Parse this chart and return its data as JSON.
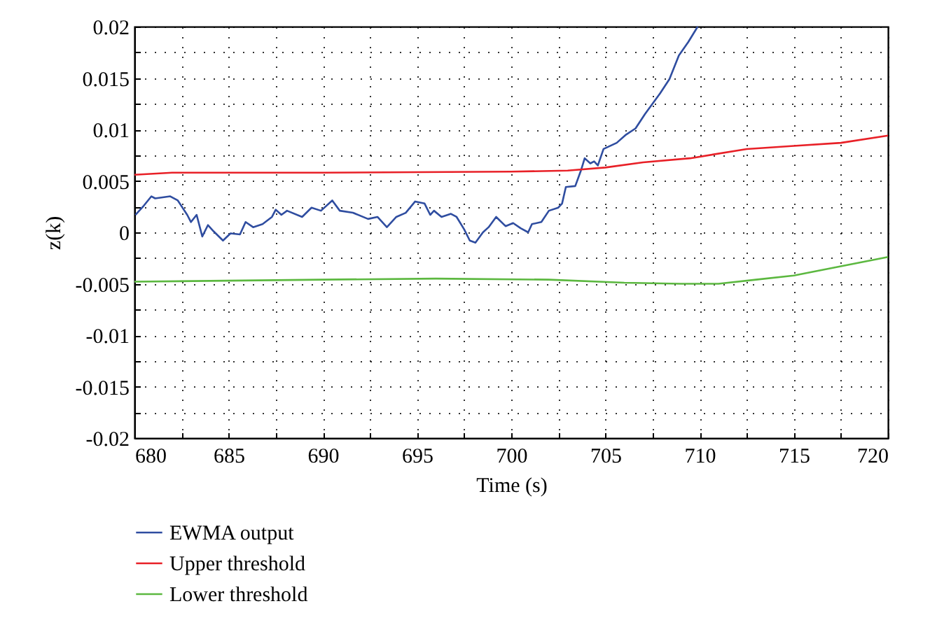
{
  "chart_data": {
    "type": "line",
    "xlabel": "Time (s)",
    "ylabel": "z(k)",
    "xlim": [
      680,
      720
    ],
    "ylim": [
      -0.02,
      0.02
    ],
    "xticks": [
      680,
      {
        "value": 682.5,
        "label": null
      },
      685,
      {
        "value": 687.5,
        "label": null
      },
      690,
      {
        "value": 692.5,
        "label": null
      },
      695,
      {
        "value": 697.5,
        "label": null
      },
      700,
      {
        "value": 702.5,
        "label": null
      },
      705,
      {
        "value": 707.5,
        "label": null
      },
      710,
      {
        "value": 712.5,
        "label": null
      },
      715,
      {
        "value": 717.5,
        "label": null
      },
      720
    ],
    "yticks": [
      -0.02,
      {
        "value": -0.0175,
        "label": null
      },
      -0.015,
      {
        "value": -0.0125,
        "label": null
      },
      -0.01,
      {
        "value": -0.0075,
        "label": null
      },
      -0.005,
      {
        "value": -0.0025,
        "label": null
      },
      0,
      {
        "value": 0.0025,
        "label": null
      },
      0.005,
      {
        "value": 0.0075,
        "label": null
      },
      0.01,
      {
        "value": 0.0125,
        "label": null
      },
      0.015,
      {
        "value": 0.0175,
        "label": null
      },
      0.02
    ],
    "grid": true,
    "line_style": "solid",
    "legend": "bottom",
    "series": [
      {
        "name": "EWMA output",
        "color": "#2f4da0",
        "x": [
          680.05,
          680.5,
          680.9,
          681.1,
          681.9,
          682.3,
          682.8,
          683.0,
          683.3,
          683.6,
          683.9,
          684.2,
          684.7,
          685.1,
          685.6,
          685.9,
          686.3,
          686.8,
          687.3,
          687.5,
          687.8,
          688.1,
          688.9,
          689.4,
          689.9,
          690.5,
          690.9,
          691.6,
          692.4,
          692.9,
          693.4,
          693.9,
          694.4,
          694.9,
          695.4,
          695.7,
          695.9,
          696.3,
          696.8,
          697.1,
          697.5,
          697.8,
          698.1,
          698.5,
          698.8,
          699.2,
          699.7,
          700.1,
          700.5,
          700.9,
          701.1,
          701.6,
          702.0,
          702.5,
          702.7,
          702.9,
          703.4,
          703.7,
          703.9,
          704.2,
          704.4,
          704.6,
          704.9,
          705.6,
          706.1,
          706.6,
          707.1,
          707.9,
          708.4,
          708.9,
          709.4,
          709.9
        ],
        "values": [
          0.0017,
          0.0026,
          0.0035,
          0.0033,
          0.0035,
          0.0031,
          0.0017,
          0.001,
          0.0017,
          -0.0004,
          0.0007,
          0.0001,
          -0.0008,
          -0.0001,
          -0.0002,
          0.001,
          0.0005,
          0.0008,
          0.0015,
          0.0022,
          0.0017,
          0.0021,
          0.0015,
          0.0024,
          0.0021,
          0.0031,
          0.0021,
          0.0019,
          0.0013,
          0.0015,
          0.0005,
          0.0015,
          0.0019,
          0.003,
          0.0028,
          0.0017,
          0.0021,
          0.0015,
          0.0018,
          0.0015,
          0.0003,
          -0.0008,
          -0.001,
          0.0,
          0.0005,
          0.0015,
          0.0006,
          0.0009,
          0.0004,
          0.0,
          0.0008,
          0.001,
          0.0021,
          0.0024,
          0.0028,
          0.0044,
          0.0045,
          0.006,
          0.0072,
          0.0067,
          0.0069,
          0.0065,
          0.0081,
          0.0087,
          0.0095,
          0.0101,
          0.0115,
          0.0135,
          0.0149,
          0.0172,
          0.0185,
          0.02
        ]
      },
      {
        "name": "Upper threshold",
        "color": "#e82027",
        "x": [
          680,
          682,
          690,
          700,
          703,
          705,
          707,
          709.5,
          712.5,
          715,
          717.5,
          720
        ],
        "values": [
          0.0056,
          0.0058,
          0.0058,
          0.0059,
          0.006,
          0.0063,
          0.0068,
          0.0072,
          0.0081,
          0.0084,
          0.0087,
          0.0094
        ]
      },
      {
        "name": "Lower threshold",
        "color": "#5cb840",
        "x": [
          680,
          690,
          696,
          702,
          706,
          709,
          711,
          713,
          715,
          717.5,
          720
        ],
        "values": [
          -0.0048,
          -0.0046,
          -0.0045,
          -0.0046,
          -0.0049,
          -0.005,
          -0.005,
          -0.0046,
          -0.0042,
          -0.0033,
          -0.0024
        ]
      }
    ]
  }
}
